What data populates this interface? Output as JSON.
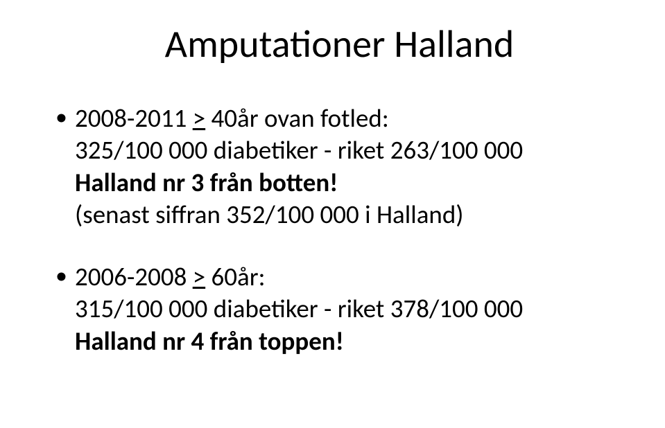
{
  "title": "Amputationer Halland",
  "group1": {
    "line1_prefix": "2008-2011 ",
    "line1_underlined": ">",
    "line1_rest": " 40år ovan fotled:",
    "line2": "325/100 000 diabetiker - riket 263/100 000",
    "line3": "Halland nr 3 från botten!",
    "line4": "(senast siffran 352/100 000 i Halland)"
  },
  "group2": {
    "line1_prefix": "2006-2008 ",
    "line1_underlined": ">",
    "line1_rest": " 60år:",
    "line2": "315/100 000 diabetiker -  riket 378/100 000",
    "line3": "Halland nr 4 från toppen!"
  },
  "colors": {
    "text": "#000000",
    "background": "#ffffff"
  },
  "fonts": {
    "title_size": 56,
    "body_size": 37
  }
}
